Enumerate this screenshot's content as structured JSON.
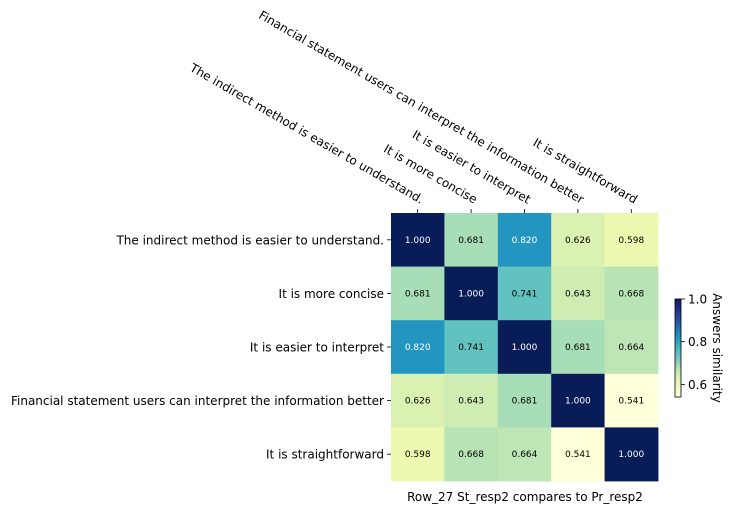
{
  "chart_data": {
    "type": "heatmap",
    "title": "",
    "xlabel": "Row_27 St_resp2 compares to Pr_resp2",
    "ylabel": "",
    "rows": [
      "The indirect method is easier to understand.",
      "It is more concise",
      "It is easier to interpret",
      "Financial statement users can interpret the information better",
      "It is straightforward"
    ],
    "columns": [
      "The indirect method is easier to understand.",
      "It is more concise",
      "It is easier to interpret",
      "Financial statement users can interpret the information better",
      "It is straightforward"
    ],
    "values": [
      [
        1.0,
        0.681,
        0.82,
        0.626,
        0.598
      ],
      [
        0.681,
        1.0,
        0.741,
        0.643,
        0.668
      ],
      [
        0.82,
        0.741,
        1.0,
        0.681,
        0.664
      ],
      [
        0.626,
        0.643,
        0.681,
        1.0,
        0.541
      ],
      [
        0.598,
        0.668,
        0.664,
        0.541,
        1.0
      ]
    ],
    "value_format": "0.000",
    "colormap": "YlGnBu",
    "colorbar": {
      "label": "Answers similarity",
      "range": [
        0.541,
        1.0
      ],
      "ticks": [
        0.6,
        0.8,
        1.0
      ],
      "tick_labels": [
        "0.6",
        "0.8",
        "1.0"
      ]
    }
  }
}
